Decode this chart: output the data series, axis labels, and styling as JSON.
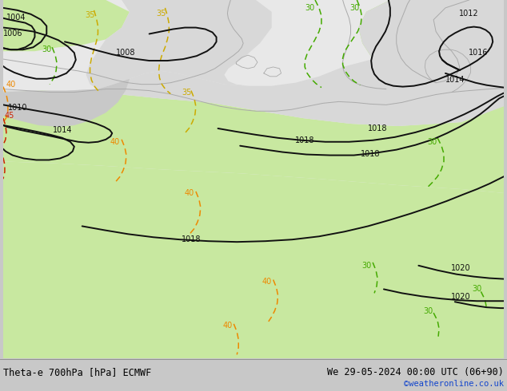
{
  "title_left": "Theta-e 700hPa [hPa] ECMWF",
  "title_right": "We 29-05-2024 00:00 UTC (06+90)",
  "credit": "©weatheronline.co.uk",
  "fig_width": 6.34,
  "fig_height": 4.9,
  "dpi": 100,
  "map_facecolor": "#e8e8e8",
  "green_light": "#c8e8a0",
  "green_mid": "#b8de88",
  "gray_light": "#d8d8d8",
  "gray_mid": "#c8c8c8",
  "black": "#111111",
  "green_contour": "#44aa00",
  "yellow_contour": "#ccaa00",
  "orange_contour": "#ee8800",
  "red_contour": "#cc2200",
  "gray_coast": "#aaaaaa",
  "credit_color": "#1144cc",
  "bar_color": "#c8c8c8",
  "title_fontsize": 8.5,
  "credit_fontsize": 7.5
}
